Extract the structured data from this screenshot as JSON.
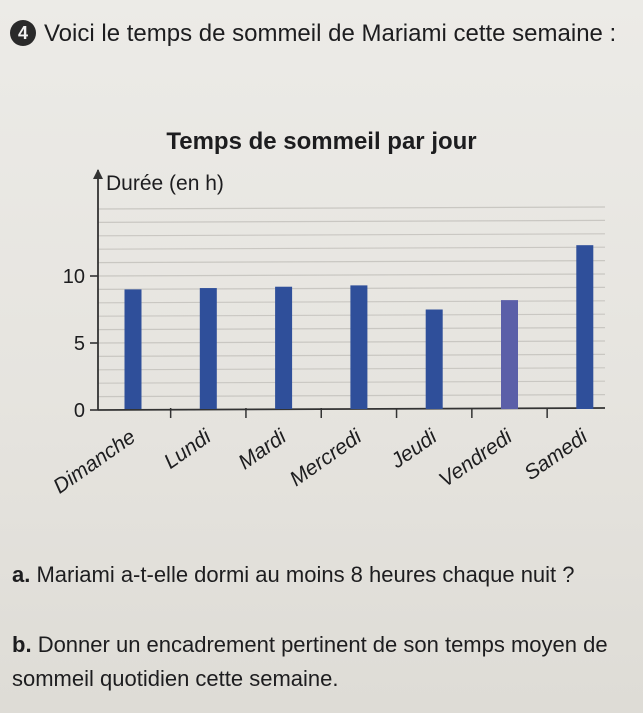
{
  "exercise": {
    "number": "4",
    "intro": "Voici le temps de sommeil de Mariami cette semaine :"
  },
  "questions": [
    {
      "letter": "a.",
      "text": "Mariami a-t-elle dormi au moins 8 heures chaque nuit ?"
    },
    {
      "letter": "b.",
      "text": "Donner un encadrement pertinent de son temps moyen de sommeil quotidien cette semaine."
    }
  ],
  "chart_data": {
    "type": "bar",
    "title": "Temps de sommeil par jour",
    "ylabel": "Durée (en h)",
    "xlabel": "",
    "categories": [
      "Dimanche",
      "Lundi",
      "Mardi",
      "Mercredi",
      "Jeudi",
      "Vendredi",
      "Samedi"
    ],
    "values": [
      9,
      9.1,
      9.2,
      9.3,
      7.5,
      8.2,
      12.3
    ],
    "ylim": [
      0,
      15
    ],
    "yticks": [
      0,
      5,
      10
    ],
    "grid": true,
    "bar_color": "#2f4f9a"
  }
}
